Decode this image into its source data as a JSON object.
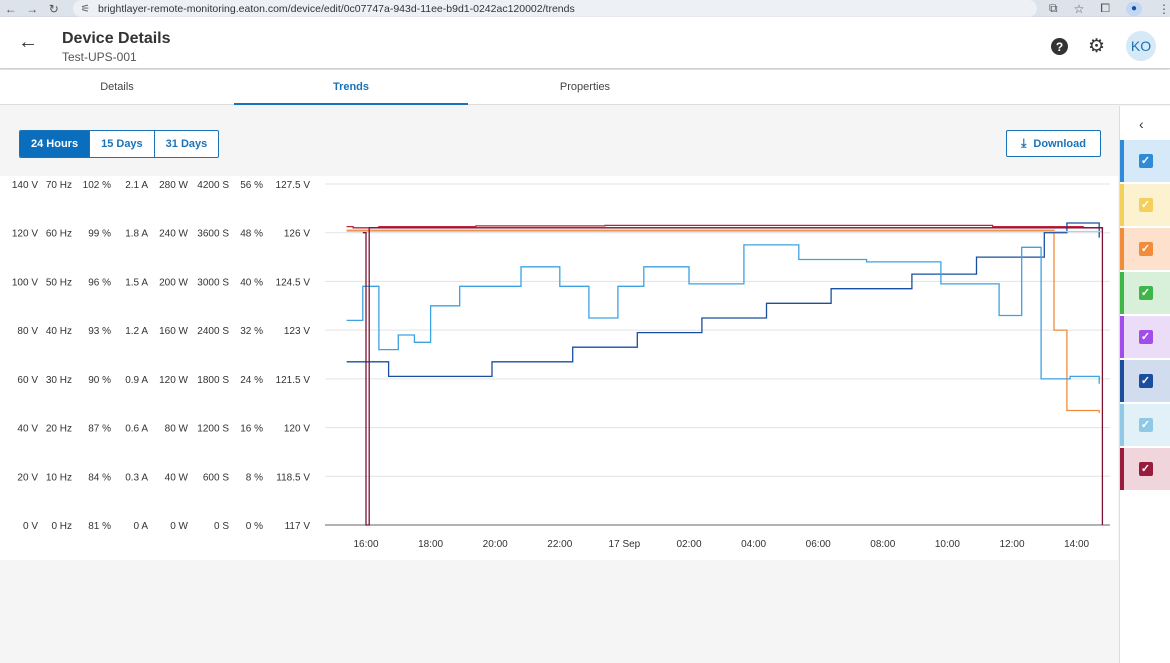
{
  "browser": {
    "url": "brightlayer-remote-monitoring.eaton.com/device/edit/0c07747a-943d-11ee-b9d1-0242ac120002/trends"
  },
  "header": {
    "title": "Device Details",
    "subtitle": "Test-UPS-001",
    "avatar_initials": "KO"
  },
  "tabs": [
    {
      "label": "Details"
    },
    {
      "label": "Trends"
    },
    {
      "label": "Properties"
    }
  ],
  "ranges": [
    {
      "label": "24 Hours"
    },
    {
      "label": "15 Days"
    },
    {
      "label": "31 Days"
    }
  ],
  "download_label": "Download",
  "chart_data": {
    "type": "line",
    "x_ticks": [
      "16:00",
      "18:00",
      "20:00",
      "22:00",
      "17 Sep",
      "02:00",
      "04:00",
      "06:00",
      "08:00",
      "10:00",
      "12:00",
      "14:00"
    ],
    "y_axes": [
      [
        "140 V",
        "120 V",
        "100 V",
        "80 V",
        "60 V",
        "40 V",
        "20 V",
        "0 V"
      ],
      [
        "70 Hz",
        "60 Hz",
        "50 Hz",
        "40 Hz",
        "30 Hz",
        "20 Hz",
        "10 Hz",
        "0 Hz"
      ],
      [
        "102 %",
        "99 %",
        "96 %",
        "93 %",
        "90 %",
        "87 %",
        "84 %",
        "81 %"
      ],
      [
        "2.1 A",
        "1.8 A",
        "1.5 A",
        "1.2 A",
        "0.9 A",
        "0.6 A",
        "0.3 A",
        "0 A"
      ],
      [
        "280 W",
        "240 W",
        "200 W",
        "160 W",
        "120 W",
        "80 W",
        "40 W",
        "0 W"
      ],
      [
        "4200 S",
        "3600 S",
        "3000 S",
        "2400 S",
        "1800 S",
        "1200 S",
        "600 S",
        "0 S"
      ],
      [
        "56 %",
        "48 %",
        "40 %",
        "32 %",
        "24 %",
        "16 %",
        "8 %",
        "0 %"
      ],
      [
        "127.5 V",
        "126 V",
        "124.5 V",
        "123 V",
        "121.5 V",
        "120 V",
        "118.5 V",
        "117 V"
      ]
    ],
    "y_range_v": [
      0,
      140
    ],
    "grid": true,
    "series": [
      {
        "color": "#c0223b",
        "x_hours": [
          0,
          0.2,
          1.0,
          4,
          8,
          12,
          16,
          20,
          22.8,
          23.4
        ],
        "values": [
          122.5,
          122,
          122.5,
          122.8,
          123,
          123,
          123,
          122.5,
          122,
          121
        ]
      },
      {
        "color": "#f08c3a",
        "x_hours": [
          0,
          21.2,
          21.9,
          22.3,
          23.3
        ],
        "values": [
          121,
          121,
          80,
          47,
          46
        ]
      },
      {
        "color": "#1a4fa0",
        "x_hours": [
          0,
          0.6,
          1.3,
          2.6,
          4.5,
          7.0,
          9.0,
          11.0,
          13.0,
          15.0,
          17.5,
          19.5,
          21.6,
          22.3,
          23.3
        ],
        "values": [
          67,
          67,
          61,
          61,
          67,
          73,
          79,
          85,
          91,
          97,
          103,
          110,
          120,
          124,
          118
        ]
      },
      {
        "color": "#3da2e3",
        "x_hours": [
          0,
          0.3,
          0.5,
          1.0,
          1.6,
          2.1,
          2.6,
          3.5,
          4.6,
          5.4,
          6.6,
          7.5,
          8.4,
          9.2,
          10.6,
          12.3,
          14.0,
          16.1,
          18.4,
          20.2,
          20.9,
          21.5,
          22.4,
          23.3
        ],
        "values": [
          84,
          84,
          98,
          72,
          78,
          75,
          90,
          98,
          98,
          106,
          98,
          85,
          98,
          106,
          99,
          115,
          109,
          108,
          99,
          86,
          114,
          60,
          61,
          58
        ]
      },
      {
        "color": "#a8d3ea",
        "x_hours": [
          0,
          23.4
        ],
        "values": [
          120.5,
          120.5
        ]
      },
      {
        "color": "#7a1230",
        "x_hours": [
          0.5,
          0.6,
          0.7,
          23.3,
          23.4
        ],
        "values": [
          120,
          0,
          122,
          122,
          0
        ]
      }
    ]
  },
  "legend": [
    {
      "color": "#2f8ad8",
      "bg": "#d6e9f9",
      "icon": "check-icon"
    },
    {
      "color": "#f4cf5b",
      "bg": "#fdf2cf",
      "icon": "check-icon"
    },
    {
      "color": "#f08c3a",
      "bg": "#fde1cd",
      "icon": "check-icon"
    },
    {
      "color": "#3fb54a",
      "bg": "#d8efd9",
      "icon": "check-icon"
    },
    {
      "color": "#a24dea",
      "bg": "#ebdcf8",
      "icon": "check-icon"
    },
    {
      "color": "#1a4fa0",
      "bg": "#d2dcef",
      "icon": "check-icon"
    },
    {
      "color": "#8fc9e5",
      "bg": "#e2f1f8",
      "icon": "check-icon"
    },
    {
      "color": "#9a1c3c",
      "bg": "#f0d6dc",
      "icon": "check-icon"
    }
  ]
}
